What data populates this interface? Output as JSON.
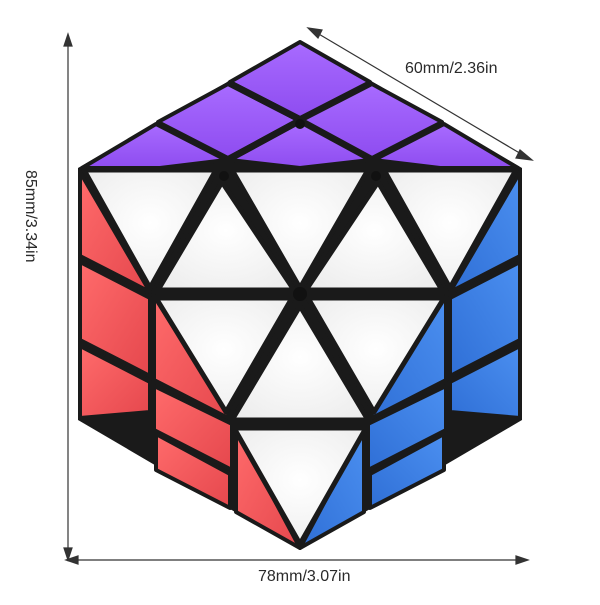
{
  "dimensions": {
    "width": "78mm/3.07in",
    "depth": "60mm/2.36in",
    "height": "85mm/3.34in"
  },
  "colors": {
    "top": "#9b5cf6",
    "left": "#f25a5a",
    "right": "#3b7fe0",
    "front": "#fafafa",
    "core": "#111111",
    "dimension_line": "#333333"
  },
  "product": {
    "type": "cube-puzzle-illustration"
  }
}
